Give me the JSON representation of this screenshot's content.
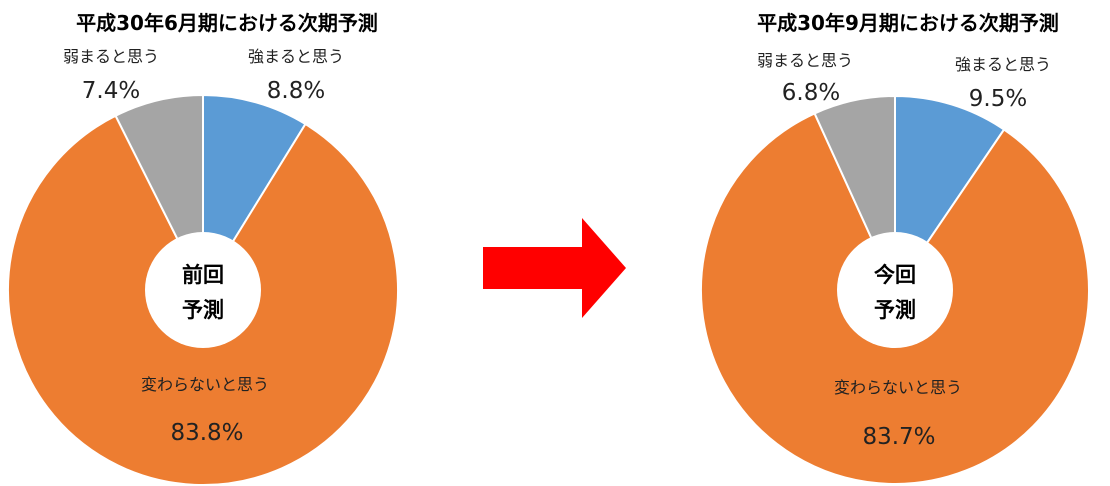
{
  "chart_data": [
    {
      "type": "pie",
      "title": "平成30年6月期における次期予測",
      "center_label": [
        "前回",
        "予測"
      ],
      "categories": [
        "強まると思う",
        "変わらないと思う",
        "弱まると思う"
      ],
      "values": [
        8.8,
        83.8,
        7.4
      ],
      "value_labels": [
        "8.8%",
        "83.8%",
        "7.4%"
      ]
    },
    {
      "type": "pie",
      "title": "平成30年9月期における次期予測",
      "center_label": [
        "今回",
        "予測"
      ],
      "categories": [
        "強まると思う",
        "変わらないと思う",
        "弱まると思う"
      ],
      "values": [
        9.5,
        83.7,
        6.8
      ],
      "value_labels": [
        "9.5%",
        "83.7%",
        "6.8%"
      ]
    }
  ],
  "colors": {
    "強まると思う": "#5b9bd5",
    "変わらないと思う": "#ed7d31",
    "弱まると思う": "#a5a5a5",
    "arrow": "#ff0000"
  }
}
